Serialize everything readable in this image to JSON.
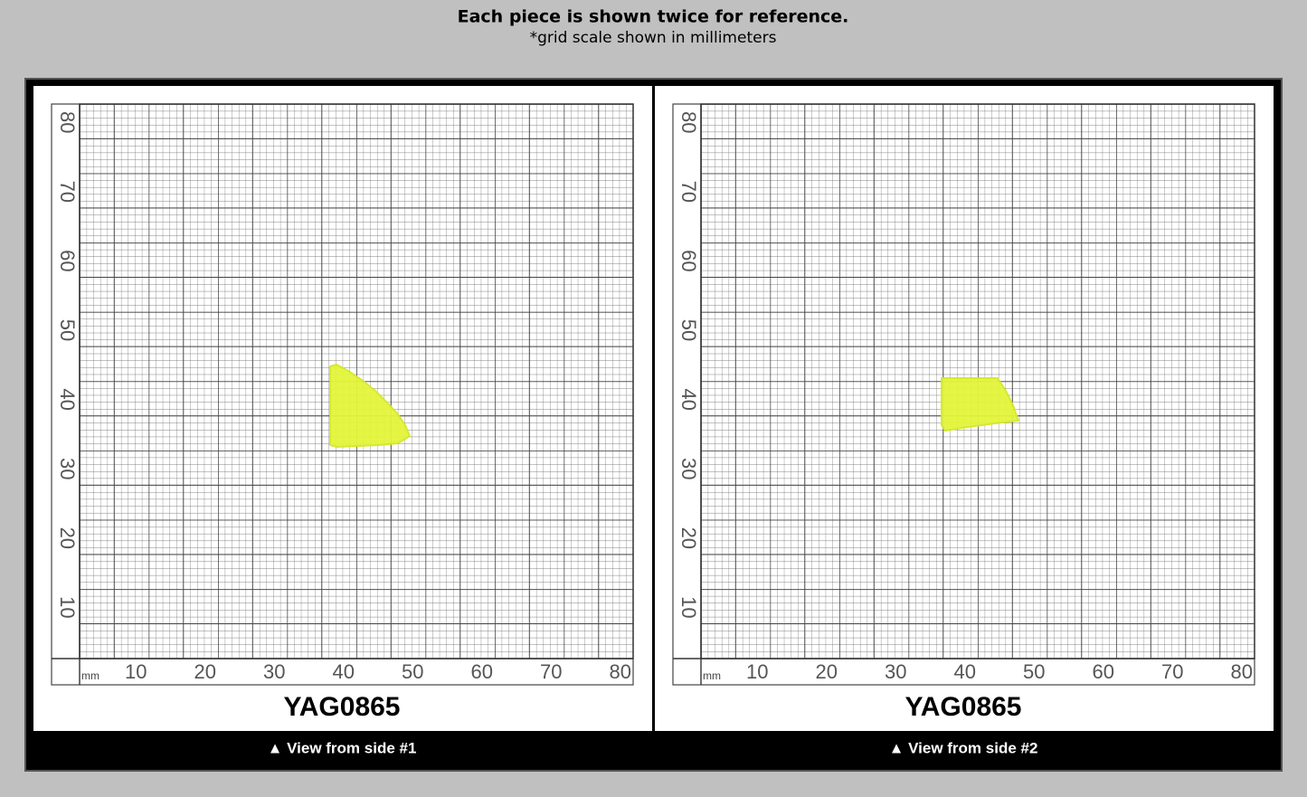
{
  "header": {
    "title": "Each piece is shown twice for reference.",
    "subtitle": "*grid scale shown in millimeters"
  },
  "panels": [
    {
      "piece_label": "YAG0865",
      "caption": "▲ View from side #1",
      "unit": "mm",
      "scale_labels": [
        "10",
        "20",
        "30",
        "40",
        "50",
        "60",
        "70",
        "80"
      ]
    },
    {
      "piece_label": "YAG0865",
      "caption": "▲ View from side #2",
      "unit": "mm",
      "scale_labels": [
        "10",
        "20",
        "30",
        "40",
        "50",
        "60",
        "70",
        "80"
      ]
    }
  ]
}
